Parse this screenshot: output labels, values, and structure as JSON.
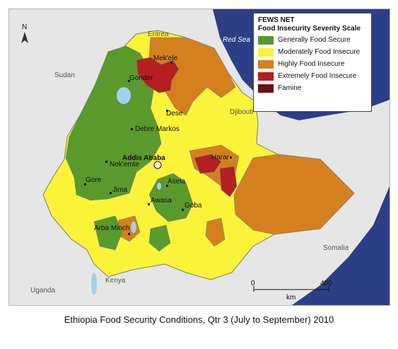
{
  "legend": {
    "title_line1": "FEWS NET",
    "title_line2": "Food Insecurity Severity Scale",
    "items": [
      {
        "label": "Generally Food Secure",
        "color": "#5a9a2c"
      },
      {
        "label": "Moderately Food Insecure",
        "color": "#fbf33a"
      },
      {
        "label": "Highly Food Insecure",
        "color": "#d5801f"
      },
      {
        "label": "Extremely Food Insecure",
        "color": "#b41f1f"
      },
      {
        "label": "Famine",
        "color": "#6a1010"
      }
    ]
  },
  "north_arrow": "N",
  "countries": {
    "eritrea": "Eritrea",
    "sudan": "Sudan",
    "djibouti": "Djibouti",
    "somalia": "Somalia",
    "kenya": "Kenya",
    "uganda": "Uganda"
  },
  "red_sea": "Red Sea",
  "cities": {
    "mekele": "Mek'ele",
    "gonder": "Gonder",
    "dese": "Dese",
    "debre_markos": "Debre Markos",
    "addis_ababa": "Addis Ababa",
    "nekemte": "Nek'emte",
    "harar": "Harar",
    "gore": "Gore",
    "jima": "Jima",
    "asela": "Asela",
    "awasa": "Awasa",
    "goba": "Goba",
    "arba_minch": "Arba Minch"
  },
  "scale_bar": {
    "start": "0",
    "end": "400",
    "unit": "km"
  },
  "caption": "Ethiopia Food Security Conditions, Qtr 3 (July to September) 2010",
  "colors": {
    "background_land": "#e6e6e6",
    "sea": "#2c3f86",
    "lake": "#9ed3ea"
  }
}
